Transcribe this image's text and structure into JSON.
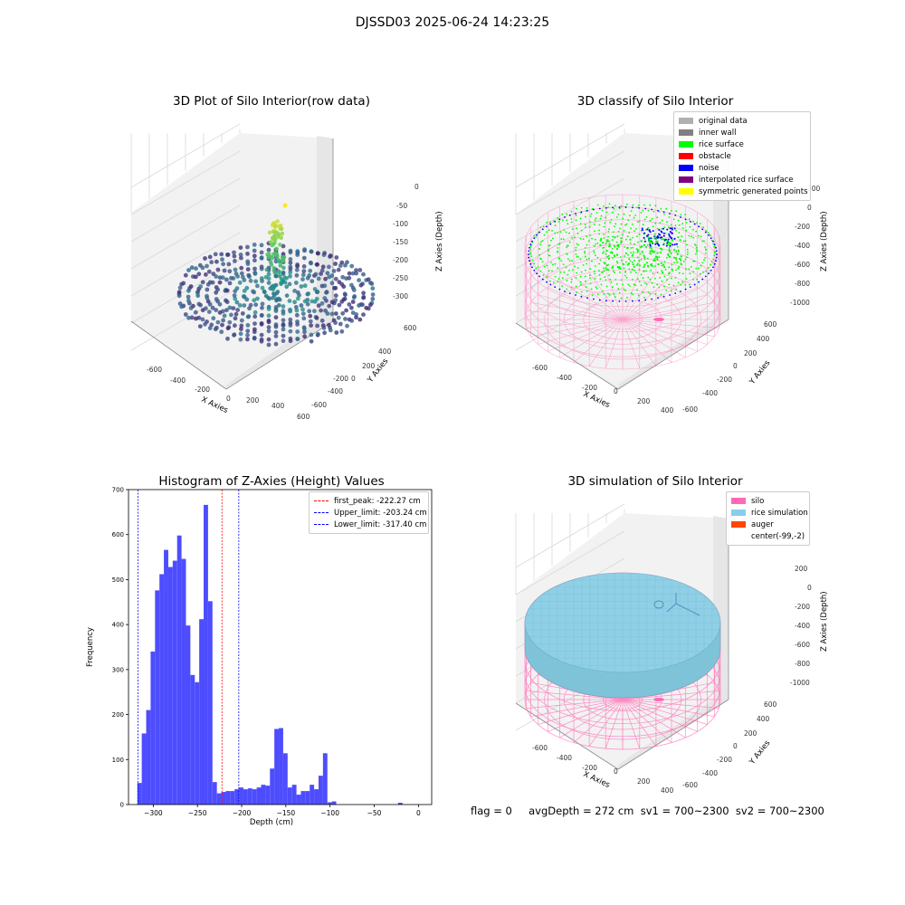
{
  "figure": {
    "suptitle": "DJSSD03 2025-06-24 14:23:25"
  },
  "status_line": "flag = 0     avgDepth = 272 cm  sv1 = 700~2300  sv2 = 700~2300",
  "colors": {
    "silo": "#ff69b4",
    "rice_simulation": "#87ceeb",
    "auger": "#ff4500",
    "rice_surface": "#00ff00",
    "noise": "#0000ff",
    "original": "#b0b0b0",
    "inner_wall": "#808080",
    "obstacle": "#ff0000",
    "interpolated": "#800080",
    "symmetric": "#ffff00",
    "hist_bar": "#4d4dff"
  },
  "chart_data": [
    {
      "type": "scatter3d",
      "title": "3D Plot of Silo Interior(row data)",
      "xlabel": "X Axies",
      "ylabel": "Y Axies",
      "zlabel": "Z Axies (Depth)",
      "xticks": [
        "-600",
        "-400",
        "-200",
        "0",
        "200",
        "400",
        "600"
      ],
      "yticks": [
        "600",
        "400",
        "200",
        "0",
        "-200",
        "-400",
        "-600"
      ],
      "zticks": [
        "0",
        "-50",
        "-100",
        "-150",
        "-200",
        "-250",
        "-300"
      ],
      "colormap": "viridis"
    },
    {
      "type": "scatter3d",
      "title": "3D classify of Silo Interior",
      "xlabel": "X Axies",
      "ylabel": "Y Axies",
      "zlabel": "Z Axies (Depth)",
      "xticks": [
        "-600",
        "-400",
        "-200",
        "0",
        "200",
        "400"
      ],
      "yticks": [
        "600",
        "400",
        "200",
        "0",
        "-200",
        "-400",
        "-600"
      ],
      "zticks": [
        "200",
        "0",
        "-200",
        "-400",
        "-600",
        "-800",
        "-1000"
      ],
      "legend": [
        {
          "label": "original data",
          "color": "#b0b0b0"
        },
        {
          "label": "inner wall",
          "color": "#808080"
        },
        {
          "label": "rice surface",
          "color": "#00ff00"
        },
        {
          "label": "obstacle",
          "color": "#ff0000"
        },
        {
          "label": "noise",
          "color": "#0000ff"
        },
        {
          "label": "interpolated rice surface",
          "color": "#800080"
        },
        {
          "label": "symmetric generated points",
          "color": "#ffff00"
        }
      ]
    },
    {
      "type": "bar",
      "title": "Histogram of Z-Axies (Height) Values",
      "xlabel": "Depth (cm)",
      "ylabel": "Frequency",
      "xlim": [
        -328,
        15
      ],
      "ylim": [
        0,
        700
      ],
      "xticks": [
        -300,
        -250,
        -200,
        -150,
        -100,
        -50,
        0
      ],
      "yticks": [
        0,
        100,
        200,
        300,
        400,
        500,
        600,
        700
      ],
      "bin_start": -318,
      "bin_width": 5,
      "values": [
        48,
        158,
        210,
        340,
        476,
        512,
        566,
        528,
        542,
        598,
        546,
        398,
        288,
        272,
        412,
        666,
        452,
        50,
        25,
        28,
        30,
        30,
        34,
        38,
        34,
        36,
        34,
        38,
        44,
        42,
        80,
        168,
        170,
        114,
        38,
        44,
        22,
        30,
        30,
        44,
        34,
        64,
        114,
        5,
        7,
        0,
        0,
        0,
        0,
        0,
        0,
        0,
        0,
        0,
        0,
        0,
        0,
        0,
        0,
        4
      ],
      "vlines": [
        {
          "label": "first_peak: -222.27 cm",
          "x": -222.27,
          "color": "#ff0000"
        },
        {
          "label": "Upper_limit: -203.24 cm",
          "x": -203.24,
          "color": "#0000ff"
        },
        {
          "label": "Lower_limit: -317.40 cm",
          "x": -317.4,
          "color": "#0000ff"
        }
      ]
    },
    {
      "type": "surface3d",
      "title": "3D simulation of Silo Interior",
      "xlabel": "X Axies",
      "ylabel": "Y Axies",
      "zlabel": "Z Axies (Depth)",
      "xticks": [
        "-600",
        "-400",
        "-200",
        "0",
        "200",
        "400"
      ],
      "yticks": [
        "600",
        "400",
        "200",
        "0",
        "-200",
        "-400",
        "-600"
      ],
      "zticks": [
        "200",
        "0",
        "-200",
        "-400",
        "-600",
        "-800",
        "-1000"
      ],
      "legend": [
        {
          "label": "silo",
          "color": "#ff69b4"
        },
        {
          "label": "rice simulation",
          "color": "#87ceeb"
        },
        {
          "label": "auger",
          "color": "#ff4500"
        },
        {
          "label": "center(-99,-2)",
          "color": ""
        }
      ]
    }
  ]
}
